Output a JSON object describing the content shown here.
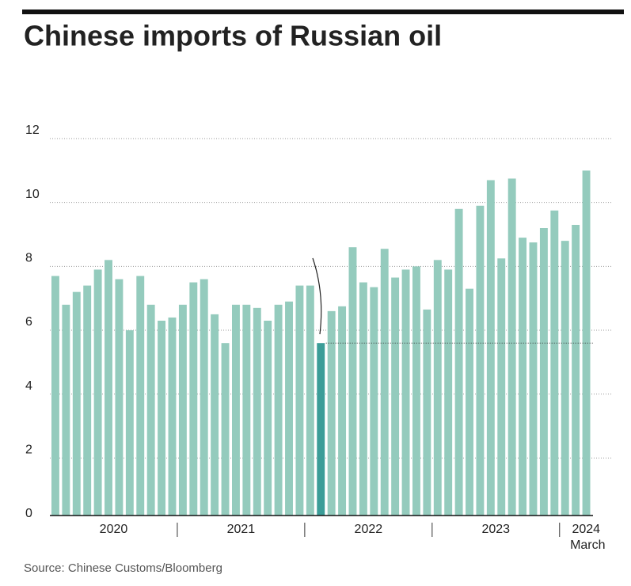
{
  "chart_data": {
    "type": "bar",
    "title": "Chinese imports of Russian oil",
    "source": "Source: Chinese Customs/Bloomberg",
    "values": [
      7.5,
      6.6,
      7.0,
      7.2,
      7.7,
      8.0,
      7.4,
      5.8,
      7.5,
      6.6,
      6.1,
      6.2,
      6.6,
      7.3,
      7.4,
      6.3,
      5.4,
      6.6,
      6.6,
      6.5,
      6.1,
      6.6,
      6.7,
      7.2,
      7.2,
      5.4,
      6.4,
      6.55,
      8.4,
      7.3,
      7.15,
      8.35,
      7.45,
      7.7,
      7.8,
      6.45,
      8.0,
      7.7,
      9.6,
      7.1,
      9.7,
      10.5,
      8.05,
      10.55,
      8.7,
      8.55,
      9.0,
      9.55,
      8.6,
      9.1,
      10.8
    ],
    "years": [
      "2020",
      "2021",
      "2022",
      "2023",
      "2024"
    ],
    "last_label": "March",
    "color": "#94cbbd",
    "highlight_index": 25,
    "highlight_color": "#3b9d98",
    "ylim": [
      0,
      12
    ],
    "yticks": [
      0,
      2,
      4,
      6,
      8,
      10,
      12
    ],
    "grid": true
  }
}
